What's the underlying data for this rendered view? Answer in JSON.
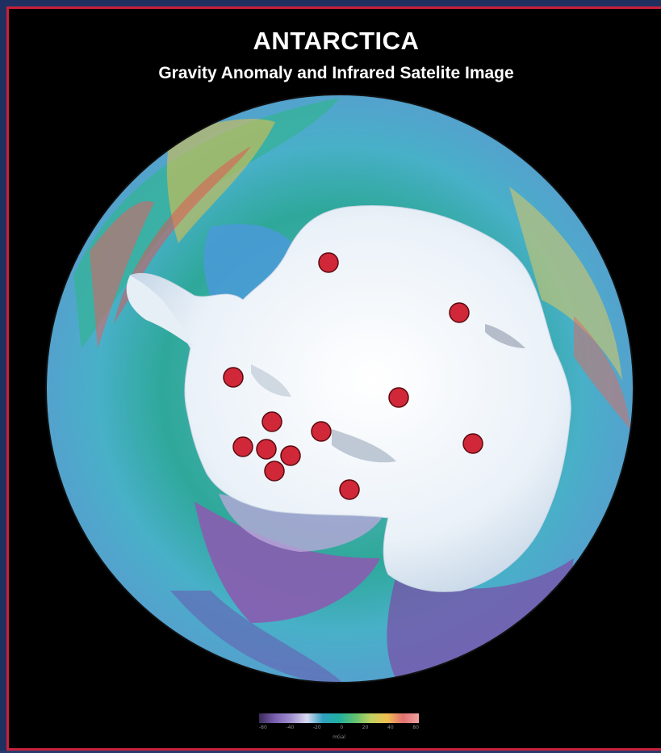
{
  "header": {
    "title": "ANTARCTICA",
    "subtitle": "Gravity Anomaly and Infrared Satelite Image"
  },
  "map": {
    "projection": "south polar stereographic (circular)",
    "markers": {
      "count": 13,
      "color": "#d02838",
      "outline": "#5a0a10"
    },
    "ocean_colors": [
      "#2aa8a0",
      "#4ab8d0",
      "#8a6ab8",
      "#e8c060",
      "#e06060"
    ],
    "ice_color": "#eef4fa"
  },
  "legend": {
    "colorbar": "gravity anomaly scale",
    "tick_labels": [
      "-80",
      "-40",
      "-20",
      "0",
      "20",
      "40",
      "80"
    ],
    "unit": "mGal"
  }
}
